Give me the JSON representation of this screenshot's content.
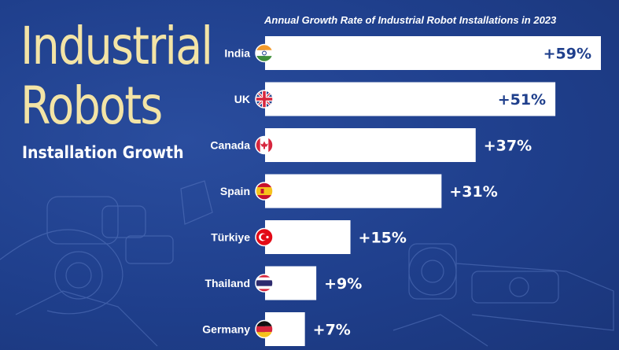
{
  "header": {
    "title_line1": "Industrial",
    "title_line2": "Robots",
    "subtitle": "Installation Growth"
  },
  "chart_data": {
    "type": "bar",
    "orientation": "horizontal",
    "title": "Annual Growth Rate of Industrial Robot Installations in 2023",
    "categories": [
      "India",
      "UK",
      "Canada",
      "Spain",
      "Türkiye",
      "Thailand",
      "Germany"
    ],
    "values": [
      59,
      51,
      37,
      31,
      15,
      9,
      7
    ],
    "value_labels": [
      "+59%",
      "+51%",
      "+37%",
      "+31%",
      "+15%",
      "+9%",
      "+7%"
    ],
    "xlim": [
      0,
      59
    ],
    "grid": false,
    "legend": "none",
    "flags": [
      "flag-india-icon",
      "flag-uk-icon",
      "flag-canada-icon",
      "flag-spain-icon",
      "flag-turkiye-icon",
      "flag-thailand-icon",
      "flag-germany-icon"
    ]
  },
  "colors": {
    "background": "#1f3f8c",
    "bar": "#ffffff",
    "title": "#f3e4a6",
    "value_text_inside": "#1f3f8c",
    "value_text_outside": "#ffffff"
  }
}
